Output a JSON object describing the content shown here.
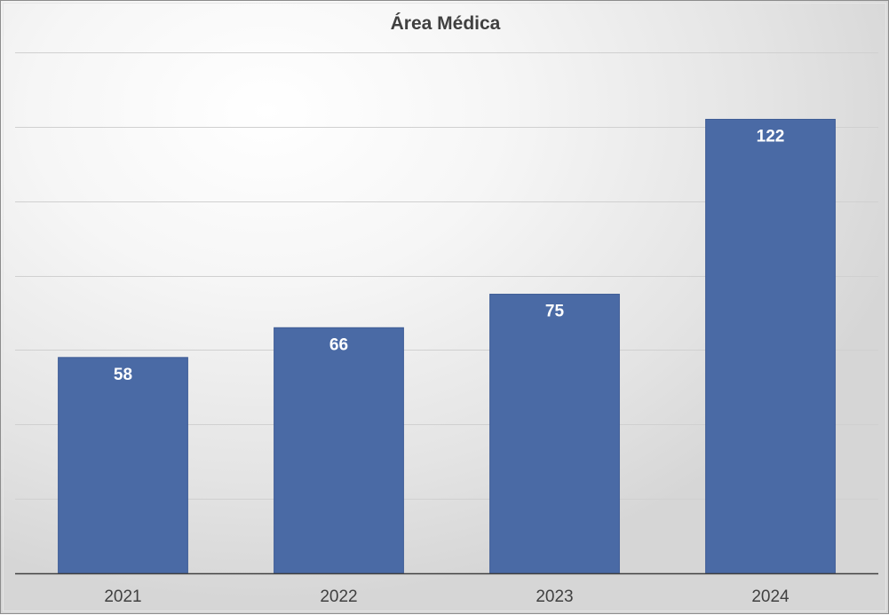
{
  "chart_data": {
    "type": "bar",
    "title": "Área Médica",
    "categories": [
      "2021",
      "2022",
      "2023",
      "2024"
    ],
    "values": [
      58,
      66,
      75,
      122
    ],
    "xlabel": "",
    "ylabel": "",
    "ylim": [
      0,
      140
    ],
    "gridlines": true,
    "gridline_step": 20,
    "legend": "none",
    "data_labels": "inside-end",
    "bar_color": "#4a6aa5",
    "gridline_color": "#d0d0d0",
    "axis_color": "#404040"
  }
}
